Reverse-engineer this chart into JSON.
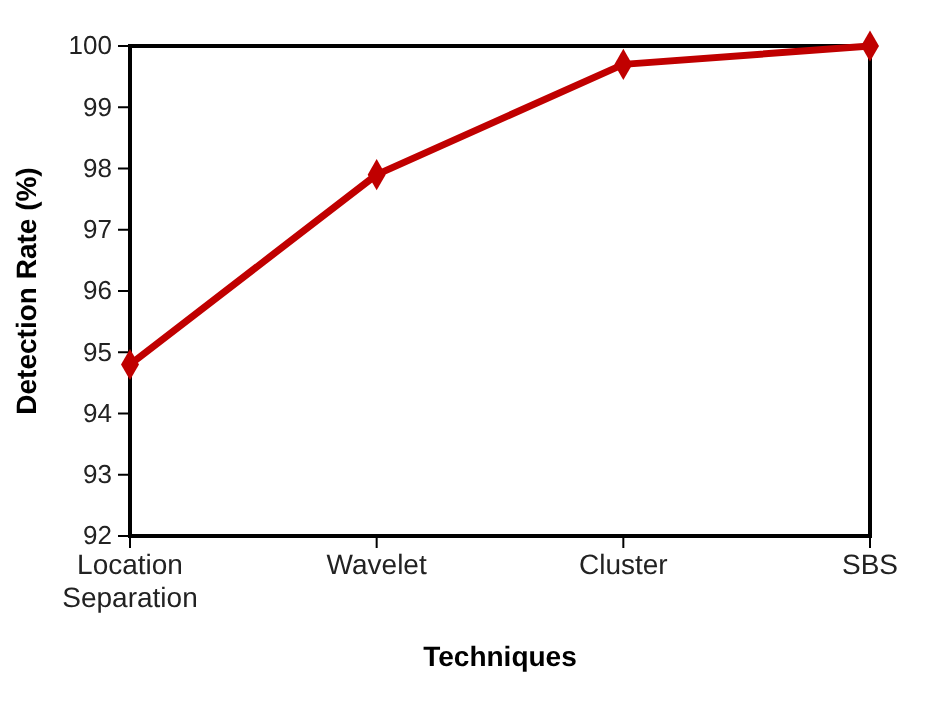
{
  "chart_data": {
    "type": "line",
    "xlabel": "Techniques",
    "ylabel": "Detection Rate (%)",
    "categories": [
      "Location Separation",
      "Wavelet",
      "Cluster",
      "SBS"
    ],
    "series": [
      {
        "color": "#c00000",
        "values": [
          94.8,
          97.9,
          99.7,
          100
        ]
      }
    ],
    "ylim": [
      92,
      100
    ],
    "yticks": [
      92,
      93,
      94,
      95,
      96,
      97,
      98,
      99,
      100
    ],
    "marker": "diamond",
    "line_style": "solid",
    "grid": false
  }
}
